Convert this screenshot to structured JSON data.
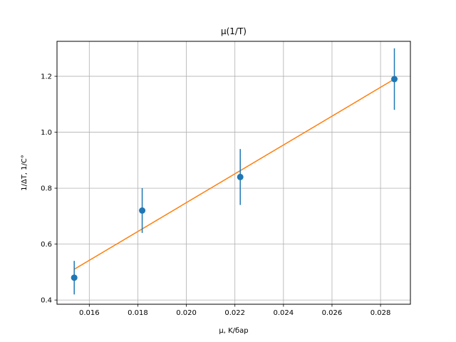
{
  "chart_data": {
    "type": "scatter",
    "title": "μ(1/T)",
    "xlabel": "μ, K/бар",
    "ylabel": "1/ΔT, 1/C°",
    "xlim": [
      0.01467,
      0.02923
    ],
    "ylim": [
      0.385,
      1.325
    ],
    "xticks": [
      0.016,
      0.018,
      0.02,
      0.022,
      0.024,
      0.026,
      0.028
    ],
    "xtick_labels": [
      "0.016",
      "0.018",
      "0.020",
      "0.022",
      "0.024",
      "0.026",
      "0.028"
    ],
    "yticks": [
      0.4,
      0.6,
      0.8,
      1.0,
      1.2
    ],
    "ytick_labels": [
      "0.4",
      "0.6",
      "0.8",
      "1.0",
      "1.2"
    ],
    "grid": true,
    "series": [
      {
        "kind": "errorbar",
        "color": "#1f77b4",
        "points": [
          {
            "x": 0.01538,
            "y": 0.48,
            "yerr_low": 0.06,
            "yerr_high": 0.06
          },
          {
            "x": 0.01818,
            "y": 0.72,
            "yerr_low": 0.08,
            "yerr_high": 0.08
          },
          {
            "x": 0.02222,
            "y": 0.84,
            "yerr_low": 0.1,
            "yerr_high": 0.1
          },
          {
            "x": 0.02857,
            "y": 1.19,
            "yerr_low": 0.11,
            "yerr_high": 0.11
          }
        ]
      },
      {
        "kind": "line",
        "color": "#ff7f0e",
        "points": [
          {
            "x": 0.01538,
            "y": 0.51
          },
          {
            "x": 0.02857,
            "y": 1.19
          }
        ]
      }
    ]
  }
}
